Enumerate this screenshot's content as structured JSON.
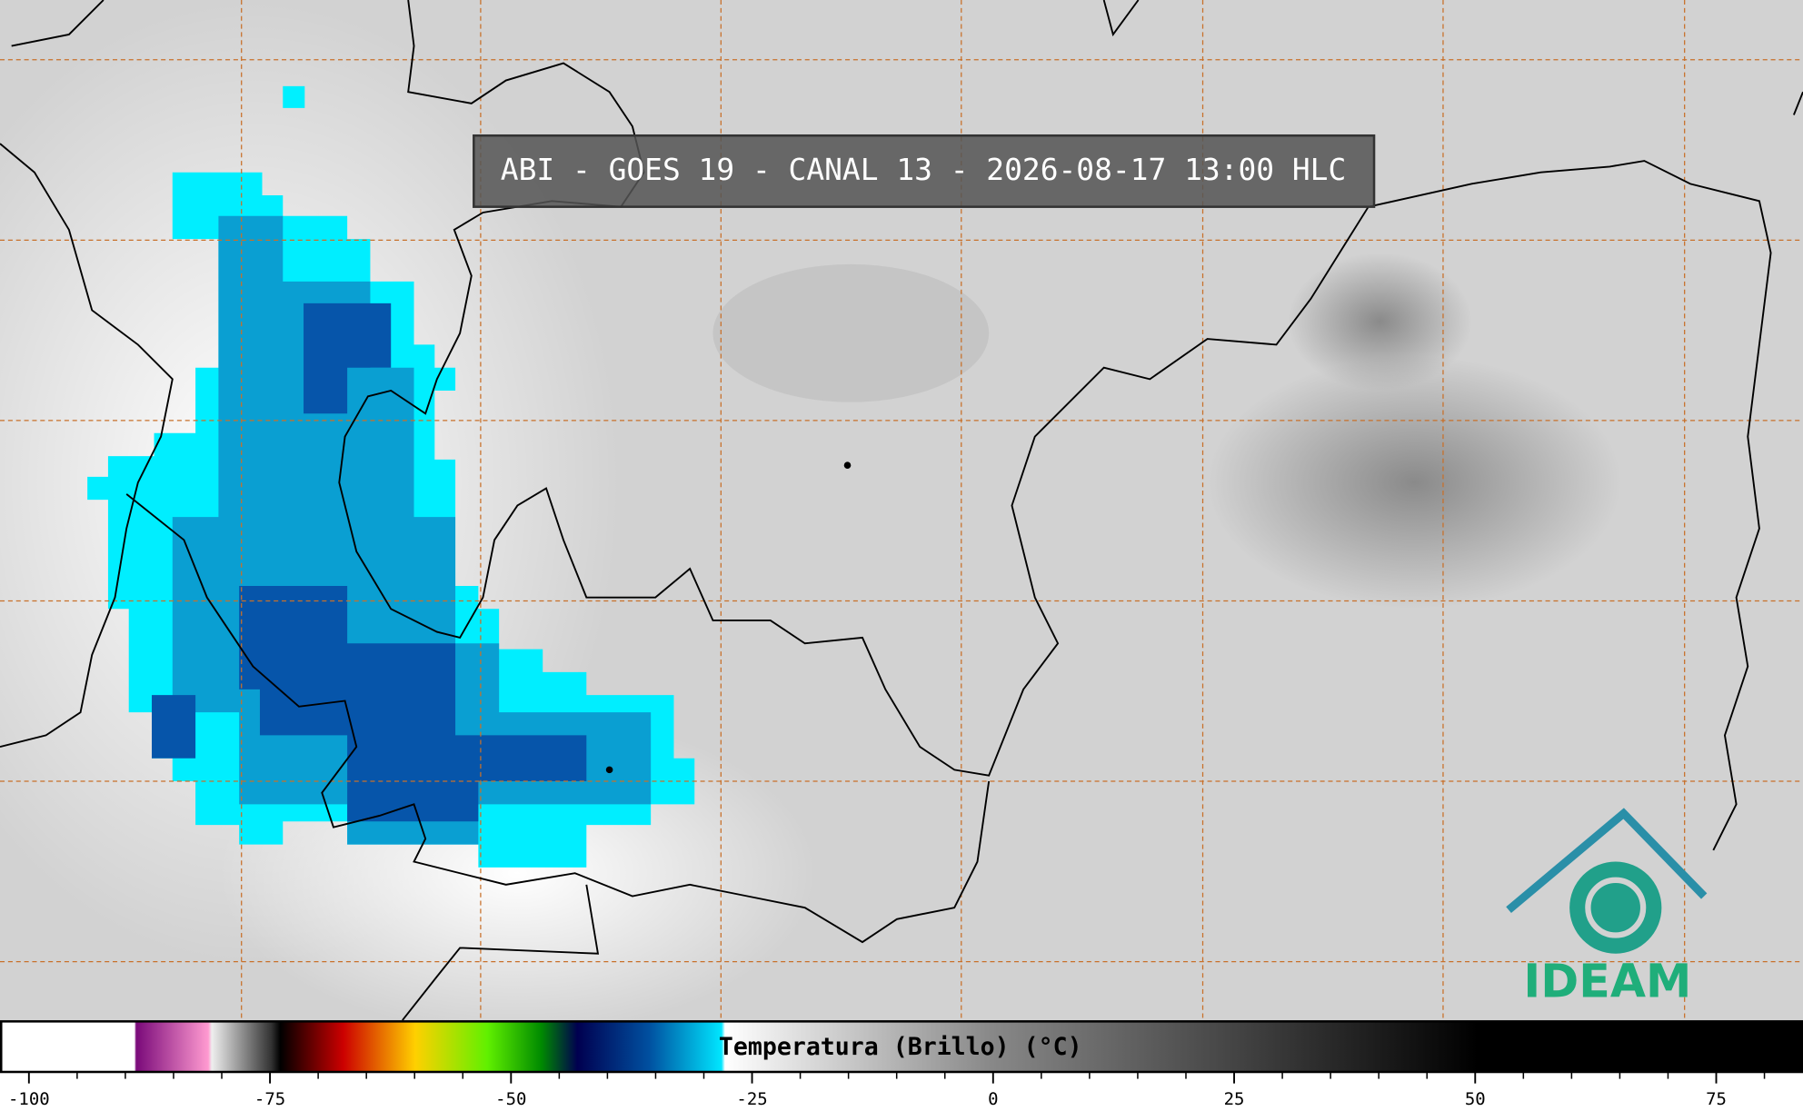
{
  "header": {
    "title": "ABI - GOES 19 - CANAL 13 - 2026-08-17 13:00 HLC"
  },
  "colorbar": {
    "label": "Temperatura (Brillo) (°C)",
    "range": [
      -103,
      84
    ],
    "ticks": [
      -100,
      -75,
      -50,
      -25,
      0,
      25,
      50,
      75
    ],
    "minor_ticks": [
      -95,
      -90,
      -85,
      -80,
      -70,
      -65,
      -60,
      -55,
      -45,
      -40,
      -35,
      -30,
      -20,
      -15,
      -10,
      -5,
      5,
      10,
      15,
      20,
      30,
      35,
      40,
      45,
      55,
      60,
      65,
      70,
      80
    ]
  },
  "logo": {
    "text": "IDEAM"
  }
}
